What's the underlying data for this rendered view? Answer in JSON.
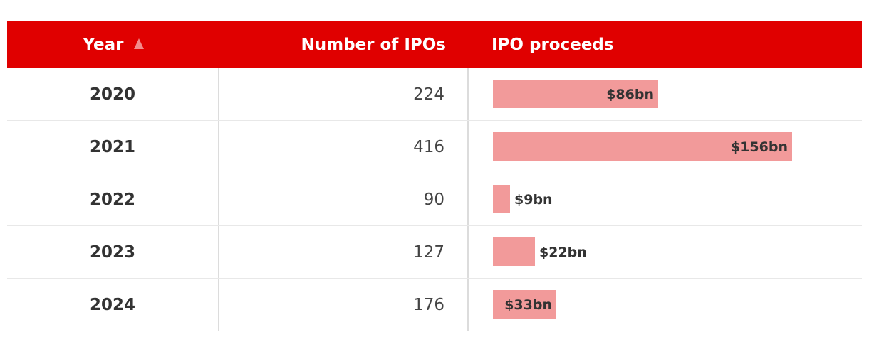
{
  "table": {
    "headers": {
      "year": "Year",
      "count": "Number of IPOs",
      "proceeds": "IPO proceeds"
    },
    "sort": {
      "column": "year",
      "direction": "ascending"
    },
    "bar_color": "#f29a9a",
    "header_color": "#e00000",
    "max_proceeds": 156,
    "rows": [
      {
        "year": "2020",
        "count": "224",
        "proceeds": 86,
        "label": "$86bn"
      },
      {
        "year": "2021",
        "count": "416",
        "proceeds": 156,
        "label": "$156bn"
      },
      {
        "year": "2022",
        "count": "90",
        "proceeds": 9,
        "label": "$9bn"
      },
      {
        "year": "2023",
        "count": "127",
        "proceeds": 22,
        "label": "$22bn"
      },
      {
        "year": "2024",
        "count": "176",
        "proceeds": 33,
        "label": "$33bn"
      }
    ]
  }
}
